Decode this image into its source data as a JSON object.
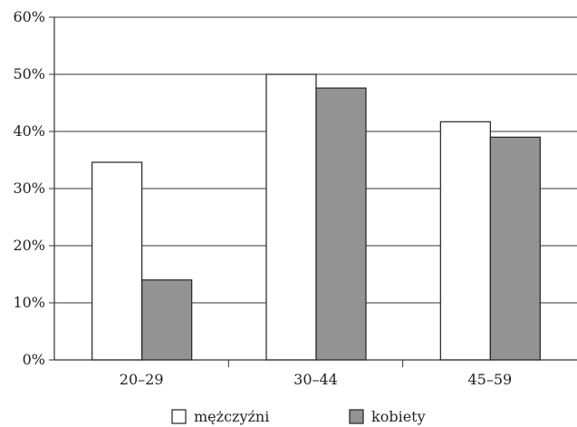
{
  "chart_data": {
    "type": "bar",
    "categories": [
      "20–29",
      "30–44",
      "45–59"
    ],
    "series": [
      {
        "name": "mężczyźni",
        "values": [
          34.6,
          50.0,
          41.7
        ],
        "color": "#ffffff"
      },
      {
        "name": "kobiety",
        "values": [
          14.0,
          47.6,
          39.0
        ],
        "color": "#939393"
      }
    ],
    "ylim": [
      0,
      60
    ],
    "yticks": [
      0,
      10,
      20,
      30,
      40,
      50,
      60
    ],
    "ytick_labels": [
      "0%",
      "10%",
      "20%",
      "30%",
      "40%",
      "50%",
      "60%"
    ],
    "grid": true,
    "legend_position": "bottom"
  }
}
